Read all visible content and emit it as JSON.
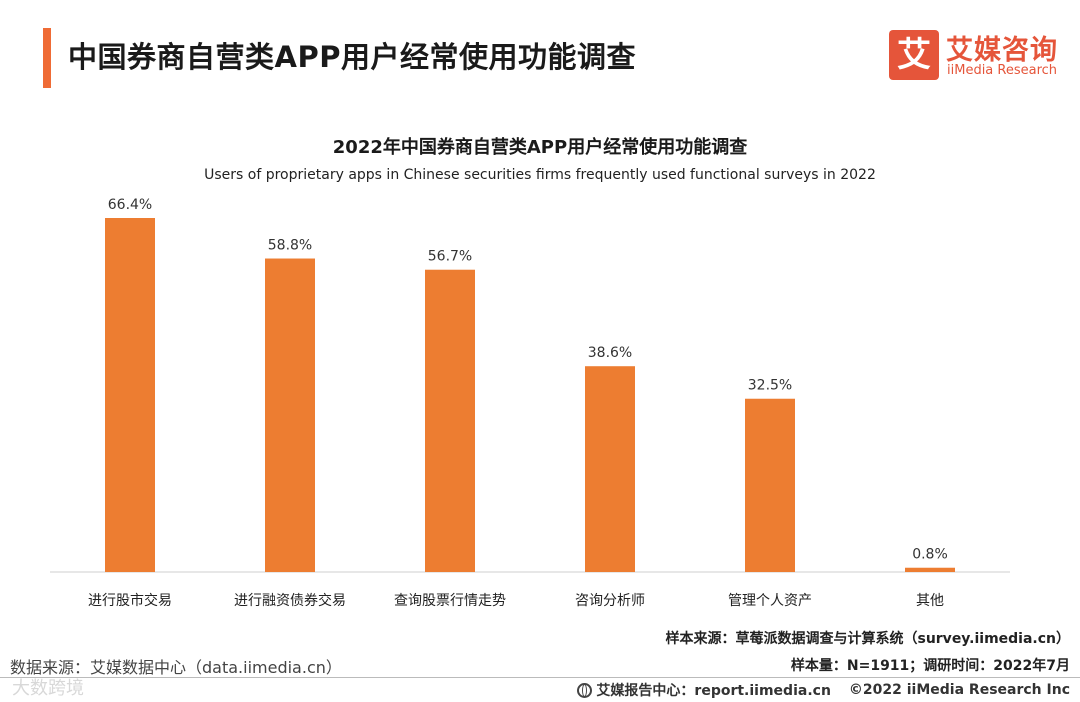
{
  "header": {
    "title": "中国券商自营类APP用户经常使用功能调查"
  },
  "logo": {
    "badge": "艾",
    "name_cn": "艾媒咨询",
    "name_en": "iiMedia Research"
  },
  "chart_data": {
    "type": "bar",
    "title": "2022年中国券商自营类APP用户经常使用功能调查",
    "subtitle": "Users of proprietary apps in Chinese securities firms frequently used functional surveys in 2022",
    "categories": [
      "进行股市交易",
      "进行融资债券交易",
      "查询股票行情走势",
      "咨询分析师",
      "管理个人资产",
      "其他"
    ],
    "values": [
      66.4,
      58.8,
      56.7,
      38.6,
      32.5,
      0.8
    ],
    "labels": [
      "66.4%",
      "58.8%",
      "56.7%",
      "38.6%",
      "32.5%",
      "0.8%"
    ],
    "unit": "%",
    "ylim": [
      0,
      66.4
    ],
    "xlabel": "",
    "ylabel": "",
    "grid": false,
    "color": "#ed7d31"
  },
  "footer": {
    "source": "数据来源：艾媒数据中心（data.iimedia.cn）",
    "sample_source": "样本来源：草莓派数据调查与计算系统（survey.iimedia.cn）",
    "sample_size": "样本量：N=1911；调研时间：2022年7月",
    "report_center": "艾媒报告中心：report.iimedia.cn",
    "copyright": "©2022  iiMedia Research  Inc",
    "watermark": "大数跨境"
  },
  "colors": {
    "accent": "#ef6b35",
    "brand": "#e5553a",
    "bar": "#ed7d31"
  }
}
